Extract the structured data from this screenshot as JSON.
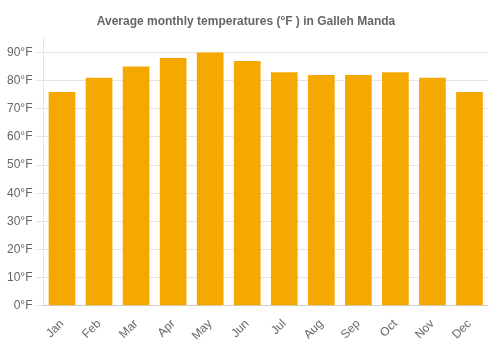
{
  "chart_data": {
    "type": "bar",
    "title": "Average monthly temperatures (°F ) in Galleh Manda",
    "categories": [
      "Jan",
      "Feb",
      "Mar",
      "Apr",
      "May",
      "Jun",
      "Jul",
      "Aug",
      "Sep",
      "Oct",
      "Nov",
      "Dec"
    ],
    "values": [
      76,
      81,
      85,
      88,
      90,
      87,
      83,
      82,
      82,
      83,
      81,
      76
    ],
    "color": "#F5A800",
    "ylim": [
      0,
      95
    ],
    "yticks": [
      {
        "value": 0,
        "label": "0°F"
      },
      {
        "value": 10,
        "label": "10°F"
      },
      {
        "value": 20,
        "label": "20°F"
      },
      {
        "value": 30,
        "label": "30°F"
      },
      {
        "value": 40,
        "label": "40°F"
      },
      {
        "value": 50,
        "label": "50°F"
      },
      {
        "value": 60,
        "label": "60°F"
      },
      {
        "value": 70,
        "label": "70°F"
      },
      {
        "value": 80,
        "label": "80°F"
      },
      {
        "value": 90,
        "label": "90°F"
      }
    ],
    "grid": true
  }
}
